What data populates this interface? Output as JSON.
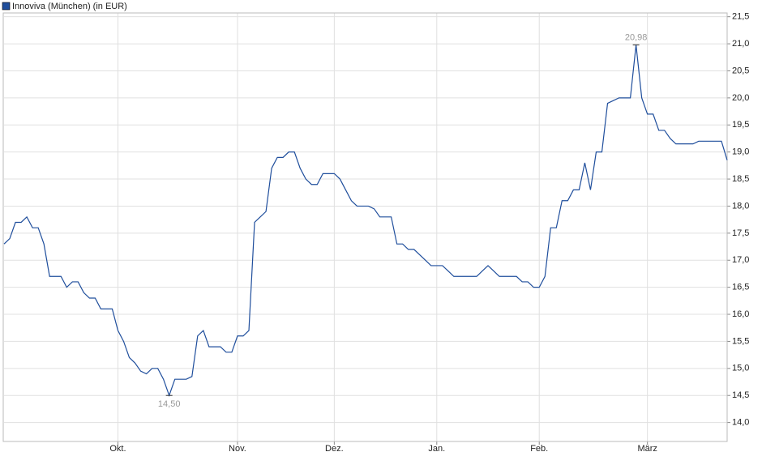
{
  "chart_data": {
    "type": "line",
    "categories": [
      null,
      null,
      null,
      null,
      null,
      null,
      null,
      null,
      null,
      null,
      null,
      null,
      null,
      null,
      null,
      null,
      null,
      null,
      null,
      null,
      "Okt.",
      null,
      null,
      null,
      null,
      null,
      null,
      null,
      null,
      null,
      null,
      null,
      null,
      null,
      null,
      null,
      null,
      null,
      null,
      null,
      null,
      "Nov.",
      null,
      null,
      null,
      null,
      null,
      null,
      null,
      null,
      null,
      null,
      null,
      null,
      null,
      null,
      null,
      null,
      "Dez.",
      null,
      null,
      null,
      null,
      null,
      null,
      null,
      null,
      null,
      null,
      null,
      null,
      null,
      null,
      null,
      null,
      null,
      "Jan.",
      null,
      null,
      null,
      null,
      null,
      null,
      null,
      null,
      null,
      null,
      null,
      null,
      null,
      null,
      null,
      null,
      null,
      "Feb.",
      null,
      null,
      null,
      null,
      null,
      null,
      null,
      null,
      null,
      null,
      null,
      null,
      null,
      null,
      null,
      null,
      null,
      null,
      "März",
      null,
      null,
      null,
      null,
      null,
      null,
      null,
      null,
      null,
      null,
      null,
      null,
      null,
      null
    ],
    "series": [
      {
        "name": "Innoviva (München) (in EUR)",
        "color": "#1f4e9c",
        "values": [
          17.3,
          17.4,
          17.7,
          17.7,
          17.8,
          17.6,
          17.6,
          17.3,
          16.7,
          16.7,
          16.7,
          16.5,
          16.6,
          16.6,
          16.4,
          16.3,
          16.3,
          16.1,
          16.1,
          16.1,
          15.7,
          15.5,
          15.2,
          15.1,
          14.95,
          14.9,
          15.0,
          15.0,
          14.8,
          14.5,
          14.8,
          14.8,
          14.8,
          14.85,
          15.6,
          15.7,
          15.4,
          15.4,
          15.4,
          15.3,
          15.3,
          15.6,
          15.6,
          15.7,
          17.7,
          17.8,
          17.9,
          18.7,
          18.9,
          18.9,
          19.0,
          19.0,
          18.7,
          18.5,
          18.4,
          18.4,
          18.6,
          18.6,
          18.6,
          18.5,
          18.3,
          18.1,
          18.0,
          18.0,
          18.0,
          17.95,
          17.8,
          17.8,
          17.8,
          17.3,
          17.3,
          17.2,
          17.2,
          17.1,
          17.0,
          16.9,
          16.9,
          16.9,
          16.8,
          16.7,
          16.7,
          16.7,
          16.7,
          16.7,
          16.8,
          16.9,
          16.8,
          16.7,
          16.7,
          16.7,
          16.7,
          16.6,
          16.6,
          16.5,
          16.5,
          16.7,
          17.6,
          17.6,
          18.1,
          18.1,
          18.3,
          18.3,
          18.8,
          18.3,
          19.0,
          19.0,
          19.9,
          19.95,
          20.0,
          20.0,
          20.0,
          20.98,
          20.0,
          19.7,
          19.7,
          19.4,
          19.4,
          19.25,
          19.15,
          19.15,
          19.15,
          19.15,
          19.2,
          19.2,
          19.2,
          19.2,
          19.2,
          18.85
        ],
        "value_labels": [
          null,
          null,
          null,
          null,
          null,
          null,
          null,
          null,
          null,
          null,
          null,
          null,
          null,
          null,
          null,
          null,
          null,
          null,
          null,
          null,
          null,
          null,
          null,
          null,
          null,
          null,
          null,
          null,
          null,
          "14,50",
          null,
          null,
          null,
          null,
          null,
          null,
          null,
          null,
          null,
          null,
          null,
          null,
          null,
          null,
          null,
          null,
          null,
          null,
          null,
          null,
          null,
          null,
          null,
          null,
          null,
          null,
          null,
          null,
          null,
          null,
          null,
          null,
          null,
          null,
          null,
          null,
          null,
          null,
          null,
          null,
          null,
          null,
          null,
          null,
          null,
          null,
          null,
          null,
          null,
          null,
          null,
          null,
          null,
          null,
          null,
          null,
          null,
          null,
          null,
          null,
          null,
          null,
          null,
          null,
          null,
          null,
          null,
          null,
          null,
          null,
          null,
          null,
          null,
          null,
          null,
          null,
          null,
          null,
          null,
          null,
          null,
          "20,98",
          null,
          null,
          null,
          null,
          null,
          null,
          null,
          null,
          null,
          null,
          null,
          null,
          null,
          null,
          null
        ]
      }
    ],
    "ylim": [
      13.65,
      21.57
    ],
    "yticks": [
      {
        "value": 14.0,
        "label": "14,0"
      },
      {
        "value": 14.5,
        "label": "14,5"
      },
      {
        "value": 15.0,
        "label": "15,0"
      },
      {
        "value": 15.5,
        "label": "15,5"
      },
      {
        "value": 16.0,
        "label": "16,0"
      },
      {
        "value": 16.5,
        "label": "16,5"
      },
      {
        "value": 17.0,
        "label": "17,0"
      },
      {
        "value": 17.5,
        "label": "17,5"
      },
      {
        "value": 18.0,
        "label": "18,0"
      },
      {
        "value": 18.5,
        "label": "18,5"
      },
      {
        "value": 19.0,
        "label": "19,0"
      },
      {
        "value": 19.5,
        "label": "19,5"
      },
      {
        "value": 20.0,
        "label": "20,0"
      },
      {
        "value": 20.5,
        "label": "20,5"
      },
      {
        "value": 21.0,
        "label": "21,0"
      },
      {
        "value": 21.5,
        "label": "21,5"
      }
    ],
    "grid": true
  }
}
